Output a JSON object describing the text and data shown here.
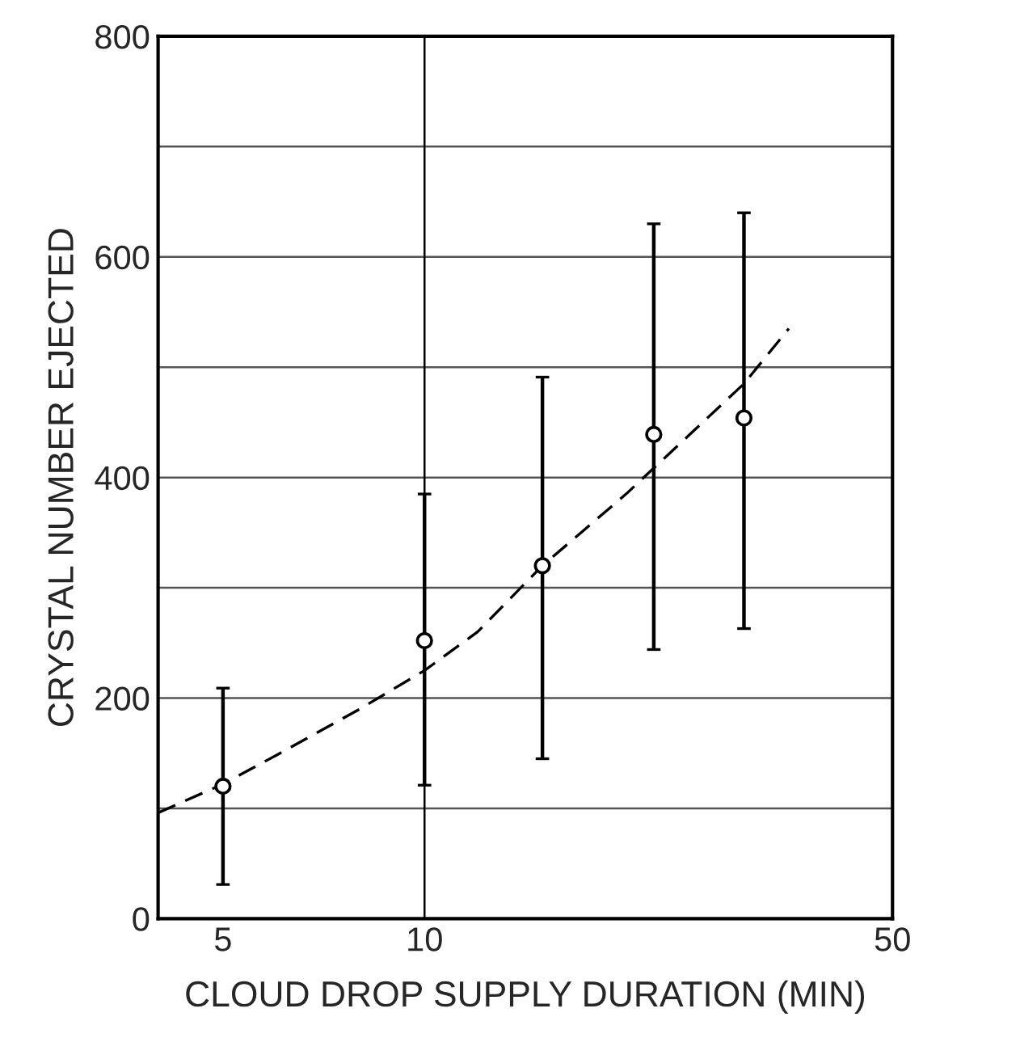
{
  "chart_data": {
    "type": "scatter",
    "xlabel": "CLOUD DROP SUPPLY DURATION (MIN)",
    "ylabel": "CRYSTAL NUMBER EJECTED",
    "log": "x",
    "xlim": [
      4,
      50
    ],
    "xticks": [
      5,
      10,
      50
    ],
    "ylim": [
      0,
      800
    ],
    "yticks": [
      0,
      {
        "value": 100,
        "label": null
      },
      200,
      {
        "value": 300,
        "label": null
      },
      400,
      {
        "value": 500,
        "label": null
      },
      600,
      {
        "value": 700,
        "label": null
      },
      800
    ],
    "grid": "y",
    "ref_lines": [
      {
        "axis": "x",
        "value": 10,
        "color": "#000000"
      }
    ],
    "series": [
      {
        "marker": "circle",
        "color": "#000000",
        "x": [
          5,
          10,
          15,
          22,
          30
        ],
        "values": [
          120,
          252,
          320,
          439,
          454
        ],
        "errors": [
          [
            31,
            209
          ],
          [
            121,
            385
          ],
          [
            145,
            491
          ],
          [
            244,
            630
          ],
          [
            263,
            640
          ]
        ]
      },
      {
        "type": "line",
        "color": "#000000",
        "line_style": "dashed",
        "marker": "none",
        "x": [
          4,
          5,
          6,
          8,
          10,
          12,
          15,
          20,
          25,
          30,
          35
        ],
        "values": [
          96,
          122,
          148,
          190,
          225,
          260,
          320,
          385,
          440,
          485,
          535
        ]
      }
    ]
  }
}
